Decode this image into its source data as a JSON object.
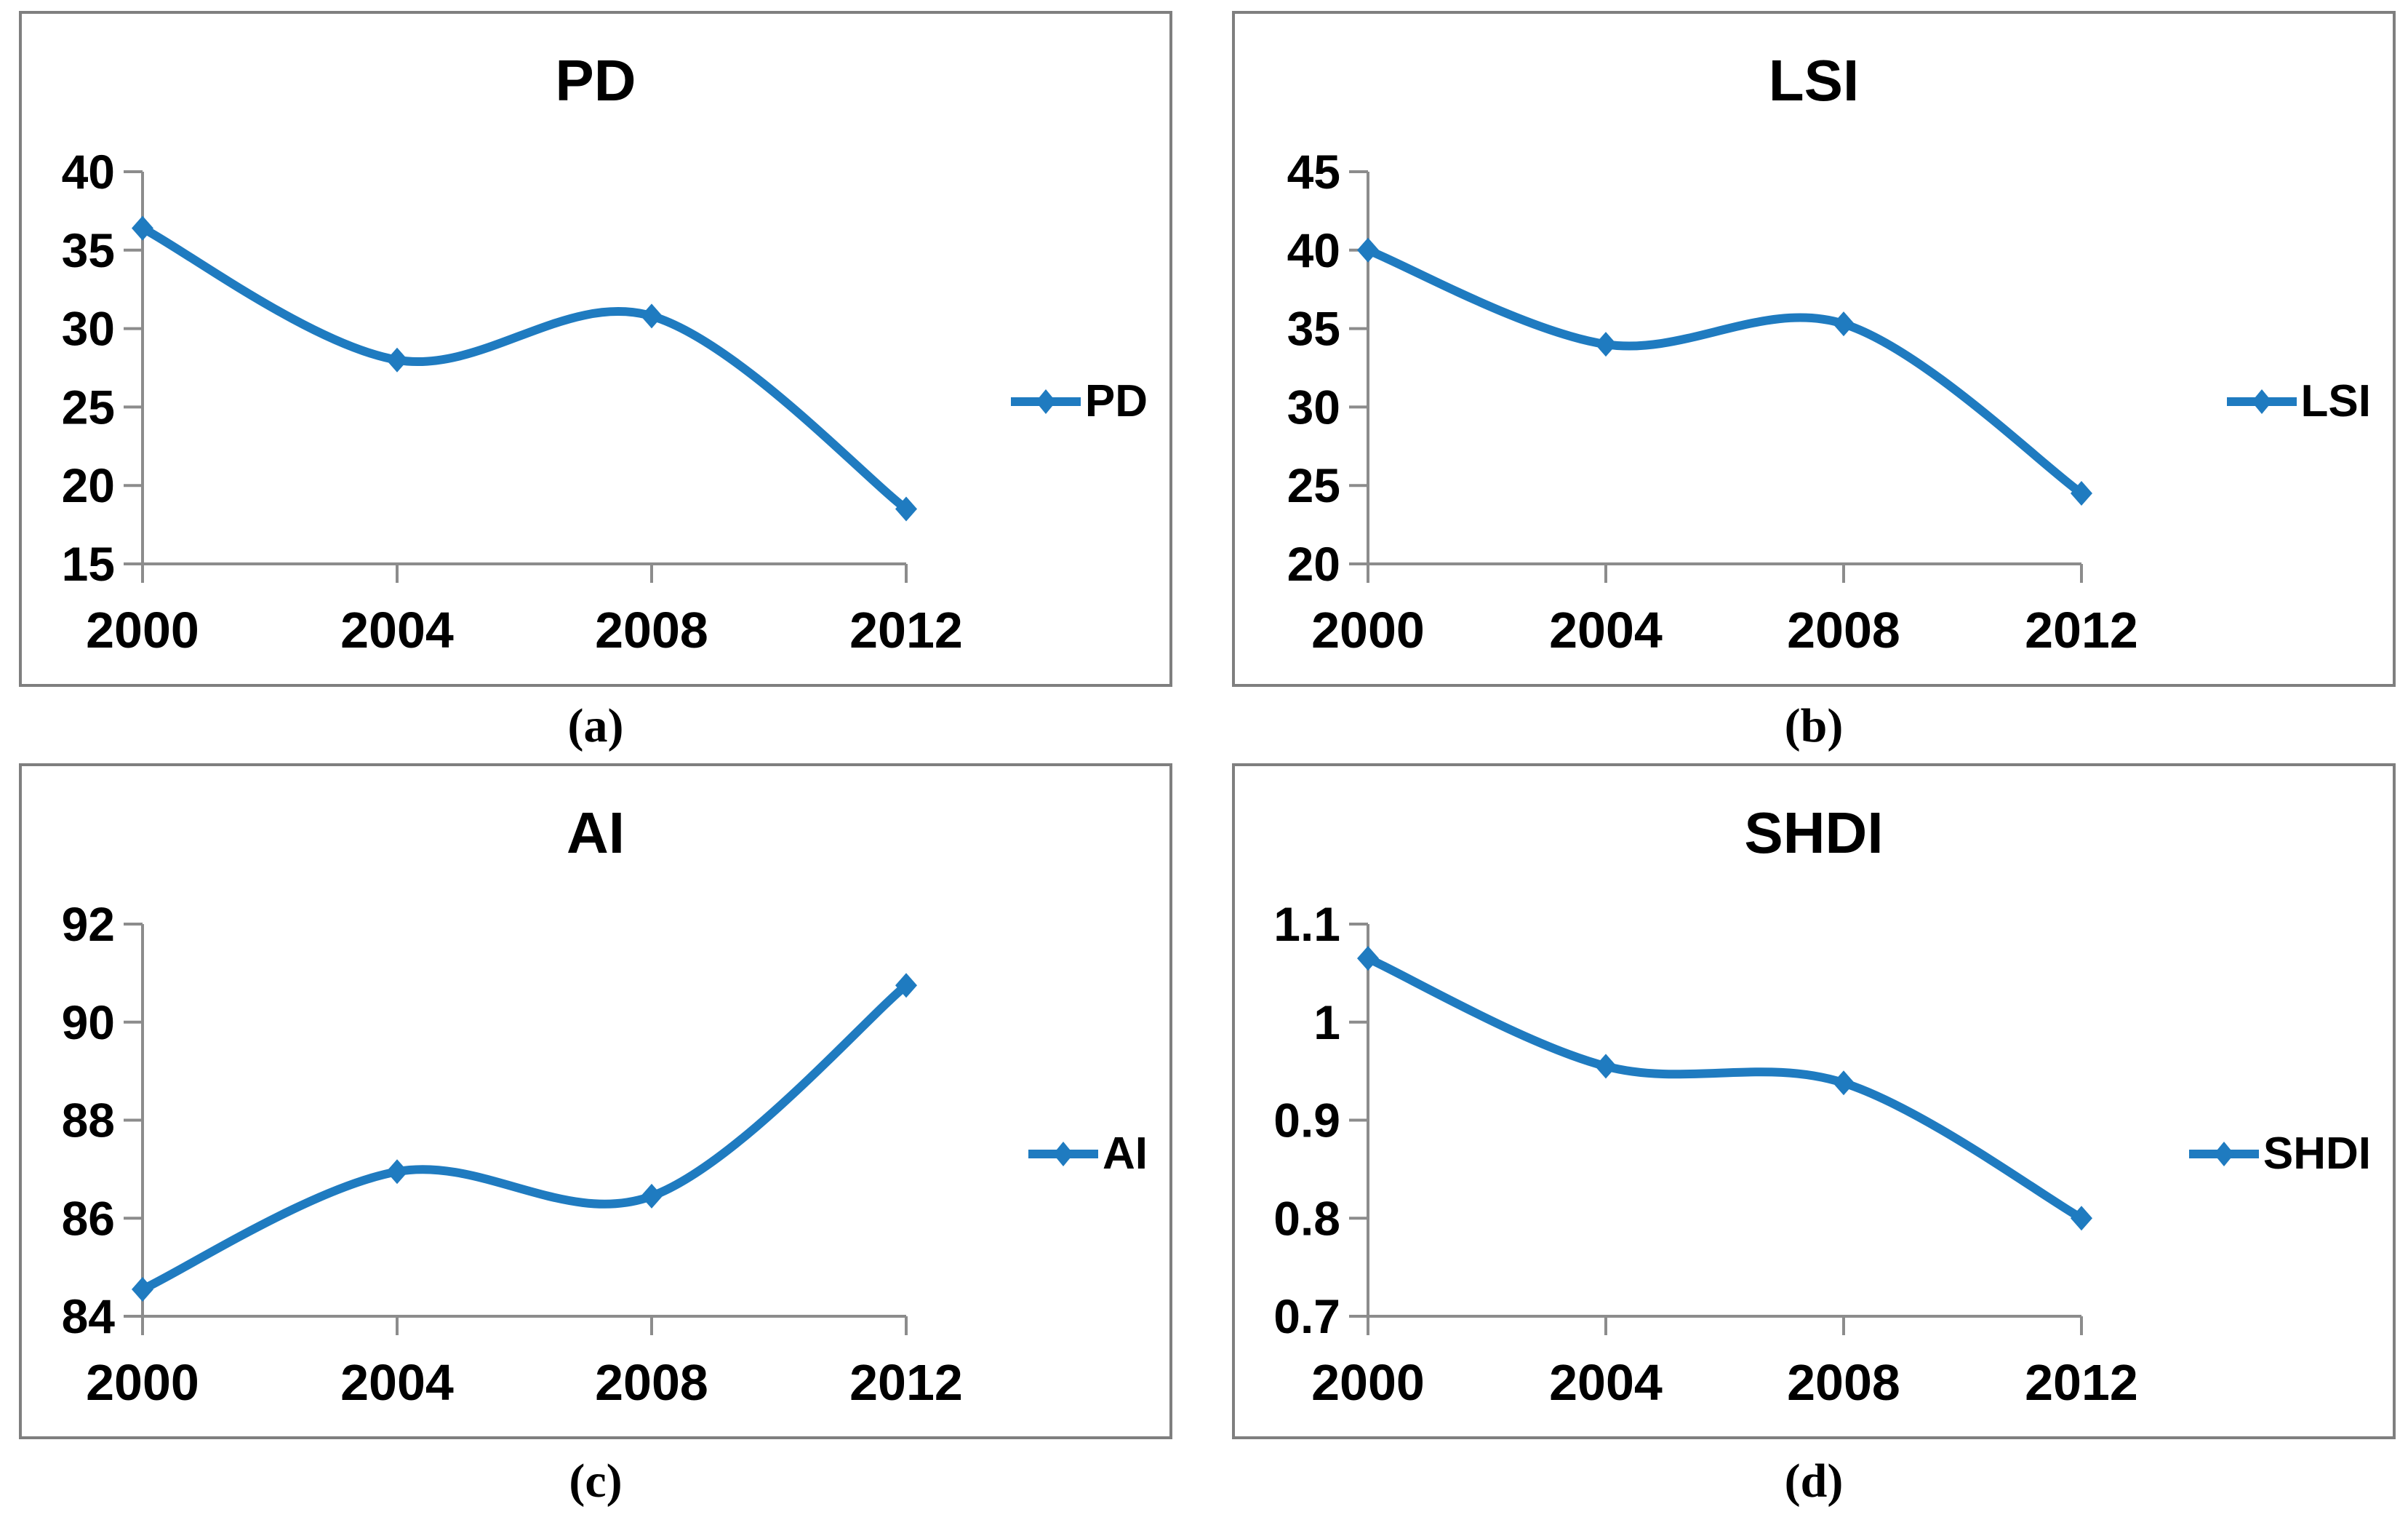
{
  "figure": {
    "background": "#ffffff",
    "series_blue": "#1F7BC0",
    "axis_gray": "#8C8C8C",
    "panel_border_gray": "#7f7f7f",
    "text_color": "#000000"
  },
  "chart_data": [
    {
      "panel_caption": "(a)",
      "type": "line",
      "title": "PD",
      "legend_label": "PD",
      "legend_position": "right",
      "categories": [
        "2000",
        "2004",
        "2008",
        "2012"
      ],
      "series": [
        {
          "name": "PD",
          "values": [
            36.4,
            28.0,
            30.8,
            18.5
          ]
        }
      ],
      "ylim": [
        15,
        40
      ],
      "y_ticks": [
        "40",
        "35",
        "30",
        "25",
        "20",
        "15"
      ],
      "grid": false,
      "smooth": true,
      "marker": "diamond"
    },
    {
      "panel_caption": "(b)",
      "type": "line",
      "title": "LSI",
      "legend_label": "LSI",
      "legend_position": "right",
      "categories": [
        "2000",
        "2004",
        "2008",
        "2012"
      ],
      "series": [
        {
          "name": "LSI",
          "values": [
            40.0,
            34.0,
            35.3,
            24.5
          ]
        }
      ],
      "ylim": [
        20,
        45
      ],
      "y_ticks": [
        "45",
        "40",
        "35",
        "30",
        "25",
        "20"
      ],
      "grid": false,
      "smooth": true,
      "marker": "diamond"
    },
    {
      "panel_caption": "(c)",
      "type": "line",
      "title": "AI",
      "legend_label": "AI",
      "legend_position": "right",
      "categories": [
        "2000",
        "2004",
        "2008",
        "2012"
      ],
      "series": [
        {
          "name": "AI",
          "values": [
            84.55,
            86.95,
            86.45,
            90.75
          ]
        }
      ],
      "ylim": [
        84,
        92
      ],
      "y_ticks": [
        "92",
        "90",
        "88",
        "86",
        "84"
      ],
      "grid": false,
      "smooth": true,
      "marker": "diamond"
    },
    {
      "panel_caption": "(d)",
      "type": "line",
      "title": "SHDI",
      "legend_label": "SHDI",
      "legend_position": "right",
      "categories": [
        "2000",
        "2004",
        "2008",
        "2012"
      ],
      "series": [
        {
          "name": "SHDI",
          "values": [
            1.065,
            0.955,
            0.938,
            0.8
          ]
        }
      ],
      "ylim": [
        0.7,
        1.1
      ],
      "y_ticks": [
        "1.1",
        "1",
        "0.9",
        "0.8",
        "0.7"
      ],
      "grid": false,
      "smooth": true,
      "marker": "diamond"
    }
  ]
}
